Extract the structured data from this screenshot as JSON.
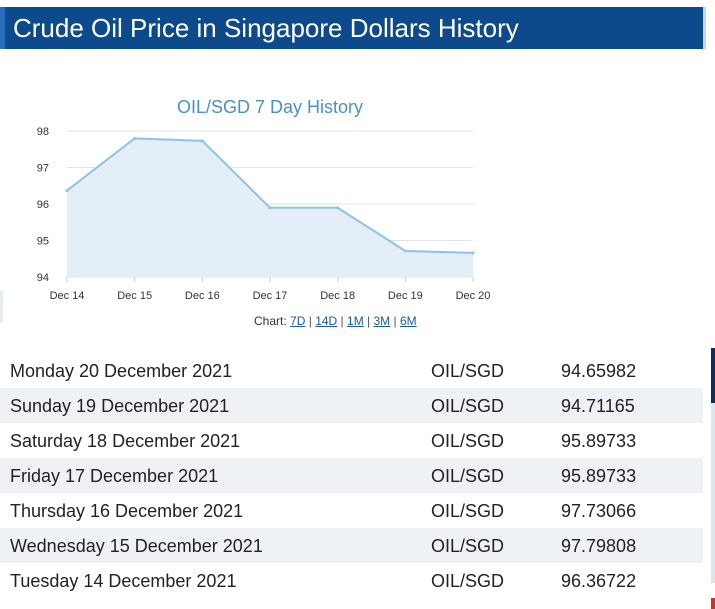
{
  "header": {
    "title": "Crude Oil Price in Singapore Dollars History"
  },
  "chart_links": {
    "prefix": "Chart:",
    "links": [
      "7D",
      "14D",
      "1M",
      "3M",
      "6M"
    ]
  },
  "chart_data": {
    "type": "area",
    "title": "OIL/SGD 7 Day History",
    "categories": [
      "Dec 14",
      "Dec 15",
      "Dec 16",
      "Dec 17",
      "Dec 18",
      "Dec 19",
      "Dec 20"
    ],
    "series": [
      {
        "values": [
          96.36722,
          97.79808,
          97.73066,
          95.89733,
          95.89733,
          94.71165,
          94.65982
        ]
      }
    ],
    "yticks": [
      94,
      95,
      96,
      97,
      98
    ],
    "ylim": [
      94,
      98
    ],
    "grid": true,
    "colors": {
      "line": "#8ec3e6",
      "fill": "#e4eef8",
      "title": "#4a90c8",
      "grid": "#e3e3e3"
    }
  },
  "table": {
    "rows": [
      {
        "date": "Monday 20 December 2021",
        "pair": "OIL/SGD",
        "rate": "94.65982"
      },
      {
        "date": "Sunday 19 December 2021",
        "pair": "OIL/SGD",
        "rate": "94.71165"
      },
      {
        "date": "Saturday 18 December 2021",
        "pair": "OIL/SGD",
        "rate": "95.89733"
      },
      {
        "date": "Friday 17 December 2021",
        "pair": "OIL/SGD",
        "rate": "95.89733"
      },
      {
        "date": "Thursday 16 December 2021",
        "pair": "OIL/SGD",
        "rate": "97.73066"
      },
      {
        "date": "Wednesday 15 December 2021",
        "pair": "OIL/SGD",
        "rate": "97.79808"
      },
      {
        "date": "Tuesday 14 December 2021",
        "pair": "OIL/SGD",
        "rate": "96.36722"
      }
    ]
  },
  "colors": {
    "header_bg": "#0d4a8c",
    "alt_row": "#eef2f5",
    "link": "#1a5aa6"
  }
}
